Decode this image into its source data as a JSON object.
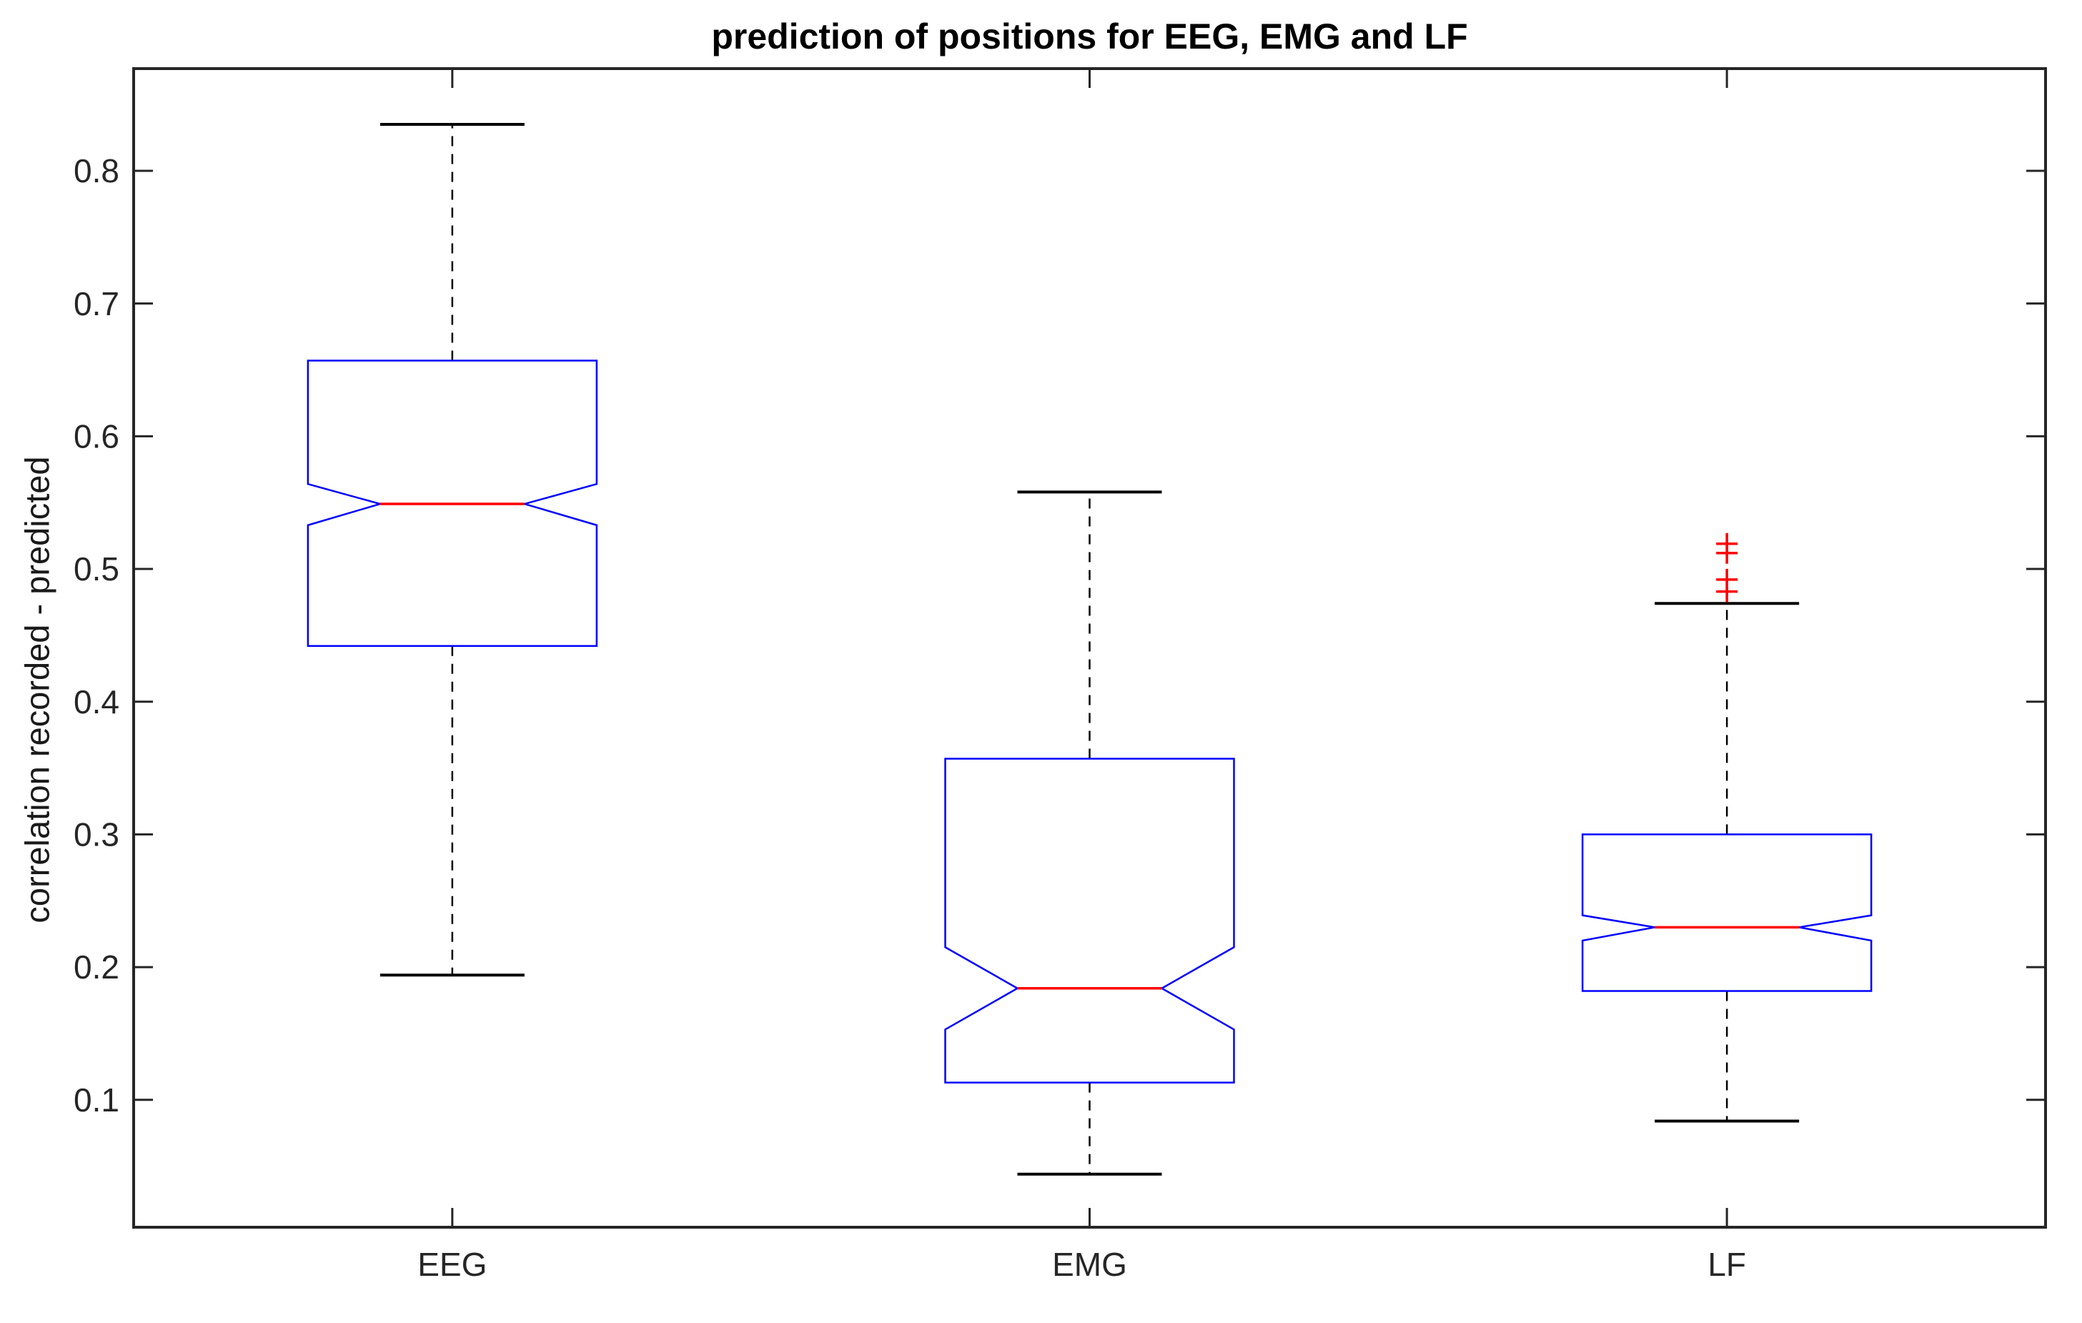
{
  "title": "prediction of positions for EEG, EMG and LF",
  "y_axis": {
    "label": "correlation recorded - predicted",
    "tick_labels": [
      "0.1",
      "0.2",
      "0.3",
      "0.4",
      "0.5",
      "0.6",
      "0.7",
      "0.8"
    ]
  },
  "x_axis": {
    "tick_labels": [
      "EEG",
      "EMG",
      "LF"
    ]
  },
  "chart_data": {
    "type": "boxplot",
    "title": "prediction of positions for EEG, EMG and LF",
    "xlabel": "",
    "ylabel": "correlation recorded - predicted",
    "categories": [
      "EEG",
      "EMG",
      "LF"
    ],
    "ylim": [
      0.004,
      0.877
    ],
    "y_ticks": [
      0.1,
      0.2,
      0.3,
      0.4,
      0.5,
      0.6,
      0.7,
      0.8
    ],
    "grid": false,
    "notched": true,
    "legend": null,
    "series": [
      {
        "name": "EEG",
        "whisker_low": 0.194,
        "q1": 0.442,
        "median": 0.549,
        "q3": 0.657,
        "whisker_high": 0.835,
        "notch_low": 0.533,
        "notch_high": 0.564,
        "outliers": []
      },
      {
        "name": "EMG",
        "whisker_low": 0.044,
        "q1": 0.113,
        "median": 0.184,
        "q3": 0.357,
        "whisker_high": 0.558,
        "notch_low": 0.153,
        "notch_high": 0.215,
        "outliers": []
      },
      {
        "name": "LF",
        "whisker_low": 0.084,
        "q1": 0.182,
        "median": 0.23,
        "q3": 0.3,
        "whisker_high": 0.474,
        "notch_low": 0.22,
        "notch_high": 0.239,
        "outliers": [
          0.519,
          0.512,
          0.492,
          0.483
        ]
      }
    ],
    "colors": {
      "box": "#0000ff",
      "median": "#ff0000",
      "whisker": "#000000",
      "cap": "#000000",
      "outlier": "#ff0000",
      "axis": "#262626",
      "title_text": "#000000",
      "background": "#ffffff"
    }
  }
}
